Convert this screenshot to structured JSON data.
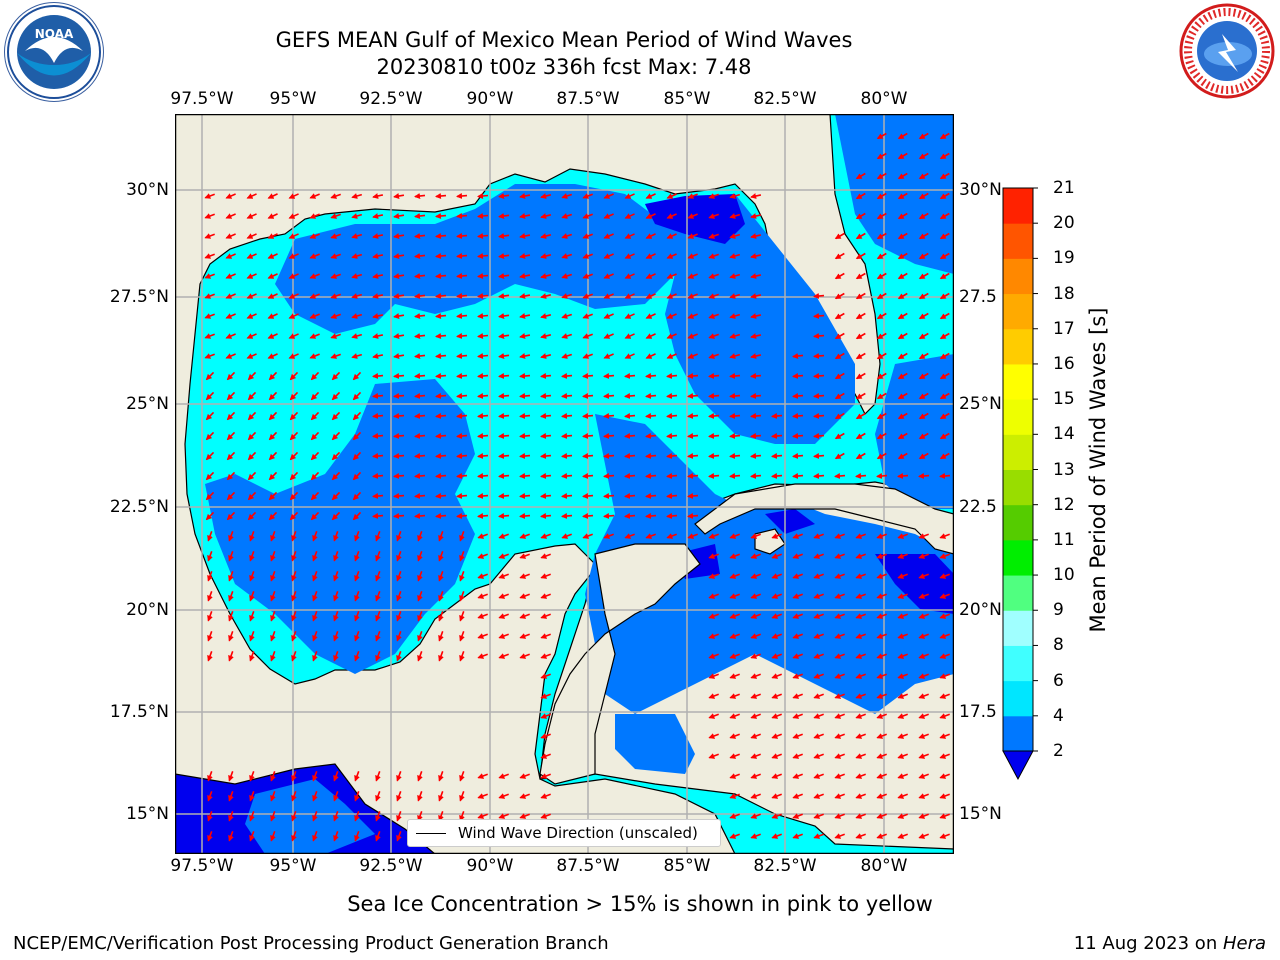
{
  "header": {
    "title_line1": "GEFS MEAN Gulf of Mexico Mean Period of Wind Waves",
    "title_line2": "20230810 t00z 336h fcst   Max: 7.48"
  },
  "map": {
    "lon_ticks": [
      "97.5°W",
      "95°W",
      "92.5°W",
      "90°W",
      "87.5°W",
      "85°W",
      "82.5°W",
      "80°W"
    ],
    "lat_ticks_left": [
      "30°N",
      "27.5°N",
      "25°N",
      "22.5°N",
      "20°N",
      "17.5°N",
      "15°N"
    ],
    "lat_ticks_right": [
      "30°N",
      "27.5",
      "25°N",
      "22.5",
      "20°N",
      "17.5",
      "15°N"
    ],
    "land_color": "#efedde",
    "legend_label": "Wind Wave Direction (unscaled)",
    "arrow_color": "#ff0000"
  },
  "colorbar": {
    "label": "Mean Period of Wind Waves [s]",
    "levels": [
      "2",
      "4",
      "6",
      "8",
      "9",
      "10",
      "11",
      "12",
      "13",
      "14",
      "15",
      "16",
      "17",
      "18",
      "19",
      "20",
      "21"
    ],
    "colors": [
      "#0078ff",
      "#00e6ff",
      "#40ffff",
      "#a0ffff",
      "#50ff80",
      "#00ee00",
      "#55cc00",
      "#99dd00",
      "#ccee00",
      "#eeff00",
      "#ffff00",
      "#ffcc00",
      "#ffaa00",
      "#ff8800",
      "#ff5500",
      "#ff2200"
    ],
    "under_color": "#0000ee"
  },
  "note": "Sea Ice Concentration > 15% is shown in pink to yellow",
  "footer": {
    "left": "NCEP/EMC/Verification Post Processing Product Generation Branch",
    "right_prefix": "11 Aug 2023 on ",
    "right_host": "Hera"
  },
  "logos": {
    "noaa_text": "NOAA",
    "nws_text": "NATIONAL WEATHER SERVICE"
  }
}
